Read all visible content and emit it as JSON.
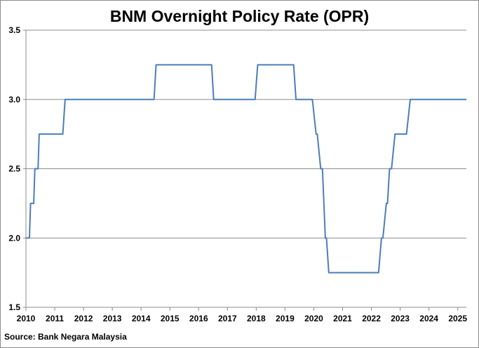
{
  "chart_data": {
    "type": "line",
    "title": "BNM Overnight Policy Rate (OPR)",
    "xlabel": "",
    "ylabel": "",
    "source": "Source: Bank Negara Malaysia",
    "xlim": [
      2010,
      2025.3
    ],
    "ylim": [
      1.5,
      3.5
    ],
    "x_ticks": [
      "2010",
      "2011",
      "2012",
      "2013",
      "2014",
      "2015",
      "2016",
      "2017",
      "2018",
      "2019",
      "2020",
      "2021",
      "2022",
      "2023",
      "2024",
      "2025"
    ],
    "y_ticks": [
      "1.5",
      "2.0",
      "2.5",
      "3.0",
      "3.5"
    ],
    "grid": "horizontal",
    "legend": "none",
    "series": [
      {
        "color": "#4a7ebb",
        "points": [
          [
            2010.0,
            2.0
          ],
          [
            2010.12,
            2.0
          ],
          [
            2010.16,
            2.25
          ],
          [
            2010.27,
            2.25
          ],
          [
            2010.31,
            2.5
          ],
          [
            2010.42,
            2.5
          ],
          [
            2010.46,
            2.75
          ],
          [
            2011.28,
            2.75
          ],
          [
            2011.36,
            3.0
          ],
          [
            2014.45,
            3.0
          ],
          [
            2014.52,
            3.25
          ],
          [
            2016.45,
            3.25
          ],
          [
            2016.52,
            3.0
          ],
          [
            2017.96,
            3.0
          ],
          [
            2018.05,
            3.25
          ],
          [
            2019.3,
            3.25
          ],
          [
            2019.38,
            3.0
          ],
          [
            2019.95,
            3.0
          ],
          [
            2020.08,
            2.75
          ],
          [
            2020.12,
            2.75
          ],
          [
            2020.24,
            2.5
          ],
          [
            2020.3,
            2.5
          ],
          [
            2020.4,
            2.0
          ],
          [
            2020.44,
            2.0
          ],
          [
            2020.52,
            1.75
          ],
          [
            2022.25,
            1.75
          ],
          [
            2022.35,
            2.0
          ],
          [
            2022.4,
            2.0
          ],
          [
            2022.52,
            2.25
          ],
          [
            2022.56,
            2.25
          ],
          [
            2022.63,
            2.5
          ],
          [
            2022.7,
            2.5
          ],
          [
            2022.82,
            2.75
          ],
          [
            2023.22,
            2.75
          ],
          [
            2023.35,
            3.0
          ],
          [
            2025.3,
            3.0
          ]
        ]
      }
    ]
  }
}
